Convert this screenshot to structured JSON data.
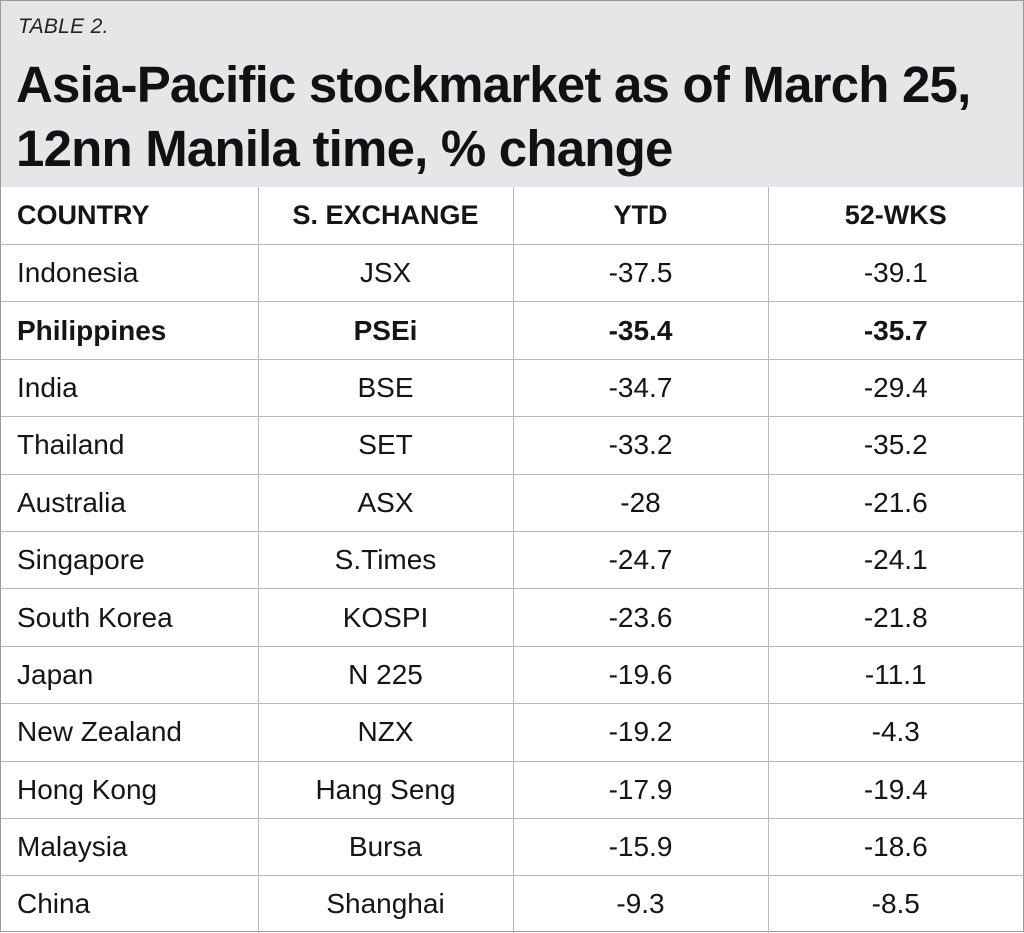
{
  "table_label": "TABLE 2.",
  "title_line1": "Asia-Pacific stockmarket as of March 25,",
  "title_line2": "12nn Manila time, % change",
  "columns": [
    "COUNTRY",
    "S. EXCHANGE",
    "YTD",
    "52-WKS"
  ],
  "rows": [
    {
      "country": "Indonesia",
      "exchange": "JSX",
      "ytd": "-37.5",
      "wks52": "-39.1"
    },
    {
      "country": "Philippines",
      "exchange": "PSEi",
      "ytd": "-35.4",
      "wks52": "-35.7"
    },
    {
      "country": "India",
      "exchange": "BSE",
      "ytd": "-34.7",
      "wks52": "-29.4"
    },
    {
      "country": "Thailand",
      "exchange": "SET",
      "ytd": "-33.2",
      "wks52": "-35.2"
    },
    {
      "country": "Australia",
      "exchange": "ASX",
      "ytd": "-28",
      "wks52": "-21.6"
    },
    {
      "country": "Singapore",
      "exchange": "S.Times",
      "ytd": "-24.7",
      "wks52": "-24.1"
    },
    {
      "country": "South Korea",
      "exchange": "KOSPI",
      "ytd": "-23.6",
      "wks52": "-21.8"
    },
    {
      "country": "Japan",
      "exchange": "N 225",
      "ytd": "-19.6",
      "wks52": "-11.1"
    },
    {
      "country": "New Zealand",
      "exchange": "NZX",
      "ytd": "-19.2",
      "wks52": "-4.3"
    },
    {
      "country": "Hong Kong",
      "exchange": "Hang Seng",
      "ytd": "-17.9",
      "wks52": "-19.4"
    },
    {
      "country": "Malaysia",
      "exchange": "Bursa",
      "ytd": "-15.9",
      "wks52": "-18.6"
    },
    {
      "country": "China",
      "exchange": "Shanghai",
      "ytd": "-9.3",
      "wks52": "-8.5"
    }
  ],
  "highlighted_country": "Philippines"
}
